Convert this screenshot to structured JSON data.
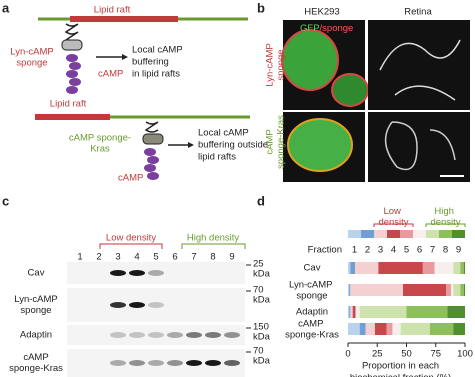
{
  "panel_a": {
    "label": "a",
    "raft_top": "Lipid raft",
    "sponge_top": [
      "Lyn-cAMP",
      "sponge"
    ],
    "camp_top": "cAMP",
    "result_top": [
      "Local cAMP",
      "buffering",
      "in lipid rafts"
    ],
    "raft_bottom": "Lipid raft",
    "sponge_bottom": [
      "cAMP sponge-",
      "Kras"
    ],
    "camp_bottom": "cAMP",
    "result_bottom": [
      "Local cAMP",
      "buffering outside",
      "lipid rafts"
    ]
  },
  "panel_b": {
    "label": "b",
    "col_left": "HEK293",
    "col_right": "Retina",
    "stain_green": "GFP",
    "stain_red": "/sponge",
    "row_top": [
      "Lyn-cAMP",
      "sponge"
    ],
    "row_bottom": [
      "cAMP",
      "sponge-Kras"
    ]
  },
  "panel_c": {
    "label": "c",
    "low_density": "Low density",
    "high_density": "High density",
    "lanes": [
      1,
      2,
      3,
      4,
      5,
      6,
      7,
      8,
      9
    ],
    "rows": [
      {
        "name": [
          "Cav"
        ],
        "marker": [
          "25",
          "kDa"
        ]
      },
      {
        "name": [
          "Lyn-cAMP",
          "sponge"
        ],
        "marker": [
          "70",
          "kDa"
        ]
      },
      {
        "name": [
          "Adaptin"
        ],
        "marker": [
          "150",
          "kDa"
        ]
      },
      {
        "name": [
          "cAMP",
          "sponge-Kras"
        ],
        "marker": [
          "70",
          "kDa"
        ]
      }
    ]
  },
  "chart_data": {
    "type": "stacked_barh",
    "panel_label": "d",
    "annotations": [
      "Low density",
      "High density"
    ],
    "legend_title": "Fraction",
    "categories": [
      "Cav",
      "Lyn-cAMP sponge",
      "Adaptin",
      "cAMP sponge-Kras"
    ],
    "series": [
      {
        "name": "1",
        "color": "#b9d3ec",
        "values": [
          2,
          1,
          1,
          10
        ]
      },
      {
        "name": "2",
        "color": "#6f9fd4",
        "values": [
          4,
          1,
          1,
          5
        ]
      },
      {
        "name": "3",
        "color": "#f4d0d0",
        "values": [
          20,
          45,
          2,
          8
        ]
      },
      {
        "name": "4",
        "color": "#c8474a",
        "values": [
          38,
          37,
          2,
          10
        ]
      },
      {
        "name": "5",
        "color": "#e89a9c",
        "values": [
          10,
          4,
          1,
          5
        ]
      },
      {
        "name": "6",
        "color": "#f7eeee",
        "values": [
          16,
          2,
          3,
          7
        ]
      },
      {
        "name": "7",
        "color": "#cde3ab",
        "values": [
          6,
          6,
          40,
          25
        ]
      },
      {
        "name": "8",
        "color": "#8dbf5b",
        "values": [
          3,
          3,
          35,
          20
        ]
      },
      {
        "name": "9",
        "color": "#4f8f2f",
        "values": [
          1,
          1,
          15,
          10
        ]
      }
    ],
    "xlim": [
      0,
      100
    ],
    "xticks": [
      0,
      25,
      50,
      75,
      100
    ],
    "xlabel": [
      "Proportion in each",
      "biochemical fraction (%)"
    ]
  }
}
